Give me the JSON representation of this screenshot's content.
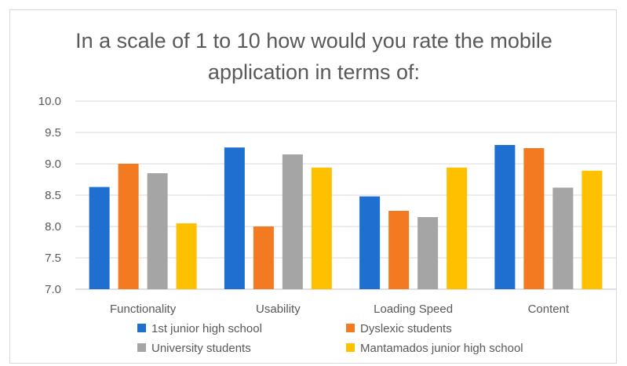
{
  "chart_data": {
    "type": "bar",
    "title": "In a scale of 1 to 10 how would you rate the mobile\napplication in terms of:",
    "categories": [
      "Functionality",
      "Usability",
      "Loading Speed",
      "Content"
    ],
    "series": [
      {
        "name": "1st junior high school",
        "color": "#1f6fd0",
        "values": [
          8.63,
          9.26,
          8.48,
          9.3
        ]
      },
      {
        "name": "Dyslexic students",
        "color": "#f47a22",
        "values": [
          9.0,
          8.0,
          8.25,
          9.25
        ]
      },
      {
        "name": "University students",
        "color": "#a5a5a5",
        "values": [
          8.85,
          9.15,
          8.15,
          8.62
        ]
      },
      {
        "name": "Mantamados junior high school",
        "color": "#ffc000",
        "values": [
          8.05,
          8.94,
          8.94,
          8.89
        ]
      }
    ],
    "ylim": [
      7.0,
      10.0
    ],
    "yticks": [
      "7.0",
      "7.5",
      "8.0",
      "8.5",
      "9.0",
      "9.5",
      "10.0"
    ],
    "grid": true,
    "legend_position": "bottom"
  }
}
